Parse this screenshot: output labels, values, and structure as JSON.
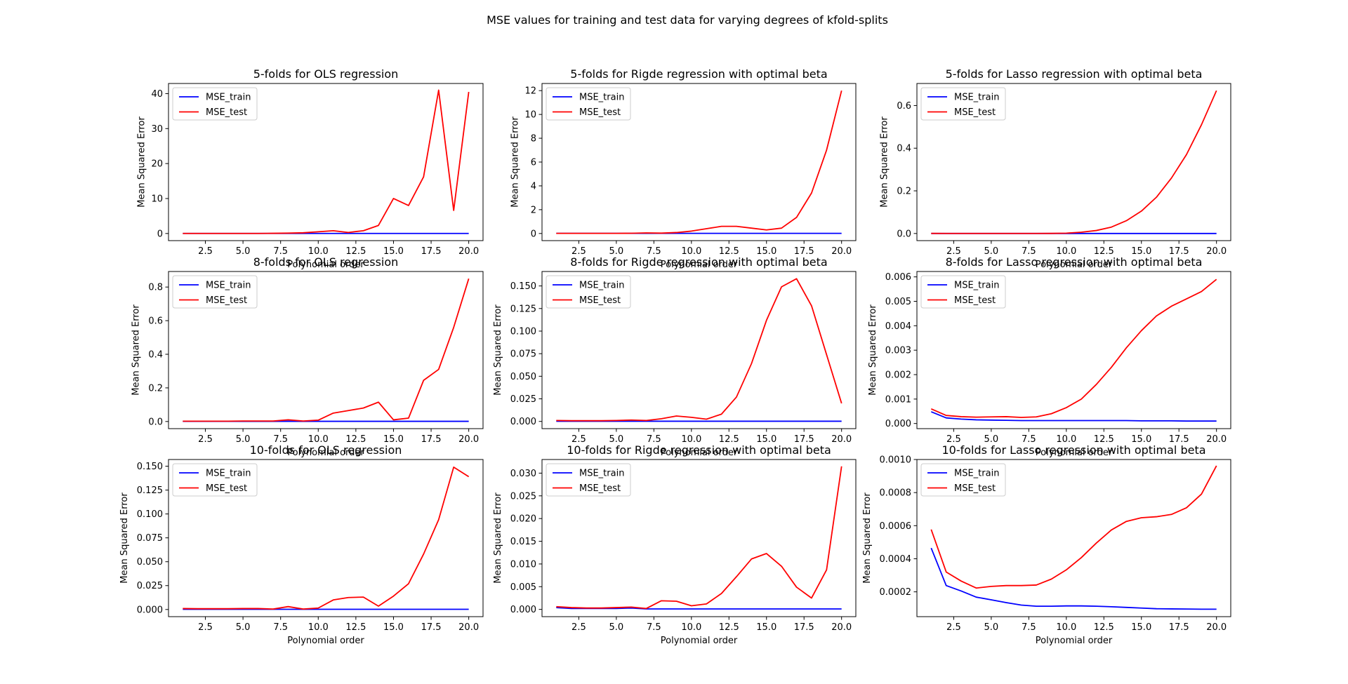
{
  "suptitle": "MSE values for training and test data for varying degrees of kfold-splits",
  "colors": {
    "train": "#0000ff",
    "test": "#ff0000",
    "axes": "#000000",
    "background": "#ffffff"
  },
  "chart_data": [
    {
      "type": "line",
      "title": "5-folds for OLS regression",
      "xlabel": "Polynomial order",
      "ylabel": "Mean Squared Error",
      "grid": false,
      "legend": "upper left",
      "xlim": [
        0.05,
        20.95
      ],
      "ylim": [
        -2.04,
        42.9
      ],
      "xticks": [
        2.5,
        5.0,
        7.5,
        10.0,
        12.5,
        15.0,
        17.5,
        20.0
      ],
      "xtick_labels": [
        "2.5",
        "5.0",
        "7.5",
        "10.0",
        "12.5",
        "15.0",
        "17.5",
        "20.0"
      ],
      "yticks": [
        0,
        10,
        20,
        30,
        40
      ],
      "ytick_labels": [
        "0",
        "10",
        "20",
        "30",
        "40"
      ],
      "x": [
        1,
        2,
        3,
        4,
        5,
        6,
        7,
        8,
        9,
        10,
        11,
        12,
        13,
        14,
        15,
        16,
        17,
        18,
        19,
        20
      ],
      "series": [
        {
          "name": "MSE_train",
          "color": "#0000ff",
          "values": [
            0.01,
            0.01,
            0.01,
            0.01,
            0.01,
            0.01,
            0.01,
            0.01,
            0.01,
            0.01,
            0.01,
            0.01,
            0.01,
            0.01,
            0.01,
            0.01,
            0.01,
            0.01,
            0.01,
            0.01
          ]
        },
        {
          "name": "MSE_test",
          "color": "#ff0000",
          "values": [
            0.01,
            0.01,
            0.01,
            0.01,
            0.02,
            0.02,
            0.05,
            0.1,
            0.2,
            0.5,
            0.8,
            0.3,
            0.8,
            2.3,
            10,
            8,
            16.2,
            41,
            6.6,
            40.5
          ]
        }
      ]
    },
    {
      "type": "line",
      "title": "5-folds for Rigde regression with optimal beta",
      "xlabel": "Polynomial order",
      "ylabel": "Mean Squared Error",
      "grid": false,
      "legend": "upper left",
      "xlim": [
        0.05,
        20.95
      ],
      "ylim": [
        -0.6,
        12.6
      ],
      "xticks": [
        2.5,
        5.0,
        7.5,
        10.0,
        12.5,
        15.0,
        17.5,
        20.0
      ],
      "xtick_labels": [
        "2.5",
        "5.0",
        "7.5",
        "10.0",
        "12.5",
        "15.0",
        "17.5",
        "20.0"
      ],
      "yticks": [
        0,
        2,
        4,
        6,
        8,
        10,
        12
      ],
      "ytick_labels": [
        "0",
        "2",
        "4",
        "6",
        "8",
        "10",
        "12"
      ],
      "x": [
        1,
        2,
        3,
        4,
        5,
        6,
        7,
        8,
        9,
        10,
        11,
        12,
        13,
        14,
        15,
        16,
        17,
        18,
        19,
        20
      ],
      "series": [
        {
          "name": "MSE_train",
          "color": "#0000ff",
          "values": [
            0.01,
            0.01,
            0.01,
            0.01,
            0.01,
            0.01,
            0.01,
            0.01,
            0.01,
            0.01,
            0.01,
            0.01,
            0.01,
            0.01,
            0.01,
            0.01,
            0.01,
            0.01,
            0.01,
            0.01
          ]
        },
        {
          "name": "MSE_test",
          "color": "#ff0000",
          "values": [
            0.01,
            0.01,
            0.01,
            0.01,
            0.01,
            0.02,
            0.05,
            0.03,
            0.08,
            0.2,
            0.4,
            0.6,
            0.6,
            0.45,
            0.3,
            0.45,
            1.35,
            3.4,
            7,
            12
          ]
        }
      ]
    },
    {
      "type": "line",
      "title": "5-folds for Lasso regression with optimal beta",
      "xlabel": "Polynomial order",
      "ylabel": "Mean Squared Error",
      "grid": false,
      "legend": "upper left",
      "xlim": [
        0.05,
        20.95
      ],
      "ylim": [
        -0.0335,
        0.7035
      ],
      "xticks": [
        2.5,
        5.0,
        7.5,
        10.0,
        12.5,
        15.0,
        17.5,
        20.0
      ],
      "xtick_labels": [
        "2.5",
        "5.0",
        "7.5",
        "10.0",
        "12.5",
        "15.0",
        "17.5",
        "20.0"
      ],
      "yticks": [
        0,
        0.2,
        0.4,
        0.6
      ],
      "ytick_labels": [
        "0.0",
        "0.2",
        "0.4",
        "0.6"
      ],
      "x": [
        1,
        2,
        3,
        4,
        5,
        6,
        7,
        8,
        9,
        10,
        11,
        12,
        13,
        14,
        15,
        16,
        17,
        18,
        19,
        20
      ],
      "series": [
        {
          "name": "MSE_train",
          "color": "#0000ff",
          "values": [
            0.0001,
            0.0001,
            0.0001,
            0.0001,
            0.0001,
            0.0001,
            0.0001,
            0.0001,
            0.0001,
            0.0001,
            0.0001,
            0.0001,
            0.0001,
            0.0001,
            0.0001,
            0.0001,
            0.0001,
            0.0001,
            0.0001,
            0.0001
          ]
        },
        {
          "name": "MSE_test",
          "color": "#ff0000",
          "values": [
            0.0005,
            0.0003,
            0.0003,
            0.0003,
            0.0003,
            0.0003,
            0.0003,
            0.0003,
            0.0004,
            0.0015,
            0.006,
            0.014,
            0.03,
            0.06,
            0.105,
            0.17,
            0.26,
            0.37,
            0.51,
            0.67
          ]
        }
      ]
    },
    {
      "type": "line",
      "title": "8-folds for OLS regression",
      "xlabel": "Polynomial order",
      "ylabel": "Mean Squared Error",
      "grid": false,
      "legend": "upper left",
      "xlim": [
        0.05,
        20.95
      ],
      "ylim": [
        -0.0425,
        0.8925
      ],
      "xticks": [
        2.5,
        5.0,
        7.5,
        10.0,
        12.5,
        15.0,
        17.5,
        20.0
      ],
      "xtick_labels": [
        "2.5",
        "5.0",
        "7.5",
        "10.0",
        "12.5",
        "15.0",
        "17.5",
        "20.0"
      ],
      "yticks": [
        0,
        0.2,
        0.4,
        0.6,
        0.8
      ],
      "ytick_labels": [
        "0.0",
        "0.2",
        "0.4",
        "0.6",
        "0.8"
      ],
      "x": [
        1,
        2,
        3,
        4,
        5,
        6,
        7,
        8,
        9,
        10,
        11,
        12,
        13,
        14,
        15,
        16,
        17,
        18,
        19,
        20
      ],
      "series": [
        {
          "name": "MSE_train",
          "color": "#0000ff",
          "values": [
            0.001,
            0.001,
            0.001,
            0.001,
            0.001,
            0.001,
            0.001,
            0.001,
            0.001,
            0.001,
            0.001,
            0.001,
            0.001,
            0.001,
            0.001,
            0.001,
            0.001,
            0.001,
            0.001,
            0.001
          ]
        },
        {
          "name": "MSE_test",
          "color": "#ff0000",
          "values": [
            0.002,
            0.002,
            0.002,
            0.002,
            0.003,
            0.003,
            0.003,
            0.01,
            0.003,
            0.008,
            0.05,
            0.065,
            0.08,
            0.115,
            0.01,
            0.02,
            0.245,
            0.31,
            0.56,
            0.85
          ]
        }
      ]
    },
    {
      "type": "line",
      "title": "8-folds for Rigde regression with optimal beta",
      "xlabel": "Polynomial order",
      "ylabel": "Mean Squared Error",
      "grid": false,
      "legend": "upper left",
      "xlim": [
        0.05,
        20.95
      ],
      "ylim": [
        -0.008,
        0.166
      ],
      "xticks": [
        2.5,
        5.0,
        7.5,
        10.0,
        12.5,
        15.0,
        17.5,
        20.0
      ],
      "xtick_labels": [
        "2.5",
        "5.0",
        "7.5",
        "10.0",
        "12.5",
        "15.0",
        "17.5",
        "20.0"
      ],
      "yticks": [
        0,
        0.025,
        0.05,
        0.075,
        0.1,
        0.125,
        0.15
      ],
      "ytick_labels": [
        "0.000",
        "0.025",
        "0.050",
        "0.075",
        "0.100",
        "0.125",
        "0.150"
      ],
      "x": [
        1,
        2,
        3,
        4,
        5,
        6,
        7,
        8,
        9,
        10,
        11,
        12,
        13,
        14,
        15,
        16,
        17,
        18,
        19,
        20
      ],
      "series": [
        {
          "name": "MSE_train",
          "color": "#0000ff",
          "values": [
            0.0002,
            0.0002,
            0.0002,
            0.0002,
            0.0002,
            0.0002,
            0.0002,
            0.0002,
            0.0002,
            0.0002,
            0.0002,
            0.0002,
            0.0002,
            0.0002,
            0.0002,
            0.0002,
            0.0002,
            0.0002,
            0.0002,
            0.0002
          ]
        },
        {
          "name": "MSE_test",
          "color": "#ff0000",
          "values": [
            0.001,
            0.0008,
            0.0008,
            0.0008,
            0.001,
            0.0015,
            0.001,
            0.003,
            0.006,
            0.0045,
            0.0025,
            0.008,
            0.027,
            0.064,
            0.112,
            0.149,
            0.158,
            0.128,
            0.074,
            0.02
          ]
        }
      ]
    },
    {
      "type": "line",
      "title": "8-folds for Lasso regression with optimal beta",
      "xlabel": "Polynomial order",
      "ylabel": "Mean Squared Error",
      "grid": false,
      "legend": "upper left",
      "xlim": [
        0.05,
        20.95
      ],
      "ylim": [
        -0.00021,
        0.00622
      ],
      "xticks": [
        2.5,
        5.0,
        7.5,
        10.0,
        12.5,
        15.0,
        17.5,
        20.0
      ],
      "xtick_labels": [
        "2.5",
        "5.0",
        "7.5",
        "10.0",
        "12.5",
        "15.0",
        "17.5",
        "20.0"
      ],
      "yticks": [
        0,
        0.001,
        0.002,
        0.003,
        0.004,
        0.005,
        0.006
      ],
      "ytick_labels": [
        "0.000",
        "0.001",
        "0.002",
        "0.003",
        "0.004",
        "0.005",
        "0.006"
      ],
      "x": [
        1,
        2,
        3,
        4,
        5,
        6,
        7,
        8,
        9,
        10,
        11,
        12,
        13,
        14,
        15,
        16,
        17,
        18,
        19,
        20
      ],
      "series": [
        {
          "name": "MSE_train",
          "color": "#0000ff",
          "values": [
            0.00048,
            0.00023,
            0.00018,
            0.00015,
            0.00014,
            0.00013,
            0.00012,
            0.00012,
            0.00012,
            0.00012,
            0.00012,
            0.00012,
            0.00012,
            0.00012,
            0.00011,
            0.00011,
            0.00011,
            0.0001,
            0.0001,
            0.0001
          ]
        },
        {
          "name": "MSE_test",
          "color": "#ff0000",
          "values": [
            0.0006,
            0.00033,
            0.00028,
            0.00026,
            0.00027,
            0.00028,
            0.00025,
            0.00027,
            0.0004,
            0.00065,
            0.001,
            0.0016,
            0.0023,
            0.0031,
            0.0038,
            0.0044,
            0.0048,
            0.0051,
            0.0054,
            0.0059
          ]
        }
      ]
    },
    {
      "type": "line",
      "title": "10-folds for OLS regression",
      "xlabel": "Polynomial order",
      "ylabel": "Mean Squared Error",
      "grid": false,
      "legend": "upper left",
      "xlim": [
        0.05,
        20.95
      ],
      "ylim": [
        -0.0075,
        0.157
      ],
      "xticks": [
        2.5,
        5.0,
        7.5,
        10.0,
        12.5,
        15.0,
        17.5,
        20.0
      ],
      "xtick_labels": [
        "2.5",
        "5.0",
        "7.5",
        "10.0",
        "12.5",
        "15.0",
        "17.5",
        "20.0"
      ],
      "yticks": [
        0,
        0.025,
        0.05,
        0.075,
        0.1,
        0.125,
        0.15
      ],
      "ytick_labels": [
        "0.000",
        "0.025",
        "0.050",
        "0.075",
        "0.100",
        "0.125",
        "0.150"
      ],
      "x": [
        1,
        2,
        3,
        4,
        5,
        6,
        7,
        8,
        9,
        10,
        11,
        12,
        13,
        14,
        15,
        16,
        17,
        18,
        19,
        20
      ],
      "series": [
        {
          "name": "MSE_train",
          "color": "#0000ff",
          "values": [
            0.0002,
            0.0002,
            0.0002,
            0.0002,
            0.0002,
            0.0002,
            0.0002,
            0.0002,
            0.0002,
            0.0002,
            0.0002,
            0.0002,
            0.0002,
            0.0002,
            0.0002,
            0.0002,
            0.0002,
            0.0002,
            0.0002,
            0.0002
          ]
        },
        {
          "name": "MSE_test",
          "color": "#ff0000",
          "values": [
            0.001,
            0.0008,
            0.0008,
            0.0008,
            0.001,
            0.001,
            0.0005,
            0.003,
            0.0005,
            0.0015,
            0.01,
            0.0125,
            0.013,
            0.0035,
            0.014,
            0.027,
            0.058,
            0.094,
            0.149,
            0.139
          ]
        }
      ]
    },
    {
      "type": "line",
      "title": "10-folds for Rigde regression with optimal beta",
      "xlabel": "Polynomial order",
      "ylabel": "Mean Squared Error",
      "grid": false,
      "legend": "upper left",
      "xlim": [
        0.05,
        20.95
      ],
      "ylim": [
        -0.0016,
        0.033
      ],
      "xticks": [
        2.5,
        5.0,
        7.5,
        10.0,
        12.5,
        15.0,
        17.5,
        20.0
      ],
      "xtick_labels": [
        "2.5",
        "5.0",
        "7.5",
        "10.0",
        "12.5",
        "15.0",
        "17.5",
        "20.0"
      ],
      "yticks": [
        0,
        0.005,
        0.01,
        0.015,
        0.02,
        0.025,
        0.03
      ],
      "ytick_labels": [
        "0.000",
        "0.005",
        "0.010",
        "0.015",
        "0.020",
        "0.025",
        "0.030"
      ],
      "x": [
        1,
        2,
        3,
        4,
        5,
        6,
        7,
        8,
        9,
        10,
        11,
        12,
        13,
        14,
        15,
        16,
        17,
        18,
        19,
        20
      ],
      "series": [
        {
          "name": "MSE_train",
          "color": "#0000ff",
          "values": [
            0.0004,
            0.0002,
            0.0002,
            0.0002,
            0.0002,
            0.0003,
            0.0001,
            0.0001,
            0.0001,
            0.0001,
            0.0001,
            0.0001,
            0.0001,
            0.0001,
            0.0001,
            0.0001,
            0.0001,
            0.0001,
            0.0001,
            0.0001
          ]
        },
        {
          "name": "MSE_test",
          "color": "#ff0000",
          "values": [
            0.0006,
            0.0004,
            0.0003,
            0.0003,
            0.0004,
            0.0005,
            0.0002,
            0.0019,
            0.0018,
            0.0008,
            0.0012,
            0.0035,
            0.0072,
            0.0111,
            0.0123,
            0.0095,
            0.0049,
            0.0025,
            0.0087,
            0.0315
          ]
        }
      ]
    },
    {
      "type": "line",
      "title": "10-folds for Lasso regression with optimal beta",
      "xlabel": "Polynomial order",
      "ylabel": "Mean Squared Error",
      "grid": false,
      "legend": "upper left",
      "xlim": [
        0.05,
        20.95
      ],
      "ylim": [
        5e-05,
        0.001
      ],
      "xticks": [
        2.5,
        5.0,
        7.5,
        10.0,
        12.5,
        15.0,
        17.5,
        20.0
      ],
      "xtick_labels": [
        "2.5",
        "5.0",
        "7.5",
        "10.0",
        "12.5",
        "15.0",
        "17.5",
        "20.0"
      ],
      "yticks": [
        0.0002,
        0.0004,
        0.0006,
        0.0008,
        0.001
      ],
      "ytick_labels": [
        "0.0002",
        "0.0004",
        "0.0006",
        "0.0008",
        "0.0010"
      ],
      "x": [
        1,
        2,
        3,
        4,
        5,
        6,
        7,
        8,
        9,
        10,
        11,
        12,
        13,
        14,
        15,
        16,
        17,
        18,
        19,
        20
      ],
      "series": [
        {
          "name": "MSE_train",
          "color": "#0000ff",
          "values": [
            0.000465,
            0.000238,
            0.000205,
            0.000168,
            0.000152,
            0.000135,
            0.00012,
            0.000113,
            0.000113,
            0.000115,
            0.000115,
            0.000113,
            0.00011,
            0.000106,
            0.000102,
            9.8e-05,
            9.7e-05,
            9.6e-05,
            9.5e-05,
            9.5e-05
          ]
        },
        {
          "name": "MSE_test",
          "color": "#ff0000",
          "values": [
            0.000577,
            0.00032,
            0.000265,
            0.000223,
            0.000233,
            0.000238,
            0.000238,
            0.000241,
            0.000277,
            0.000333,
            0.000407,
            0.000495,
            0.000574,
            0.000626,
            0.000648,
            0.000654,
            0.000668,
            0.000708,
            0.000791,
            0.000962
          ]
        }
      ]
    }
  ]
}
